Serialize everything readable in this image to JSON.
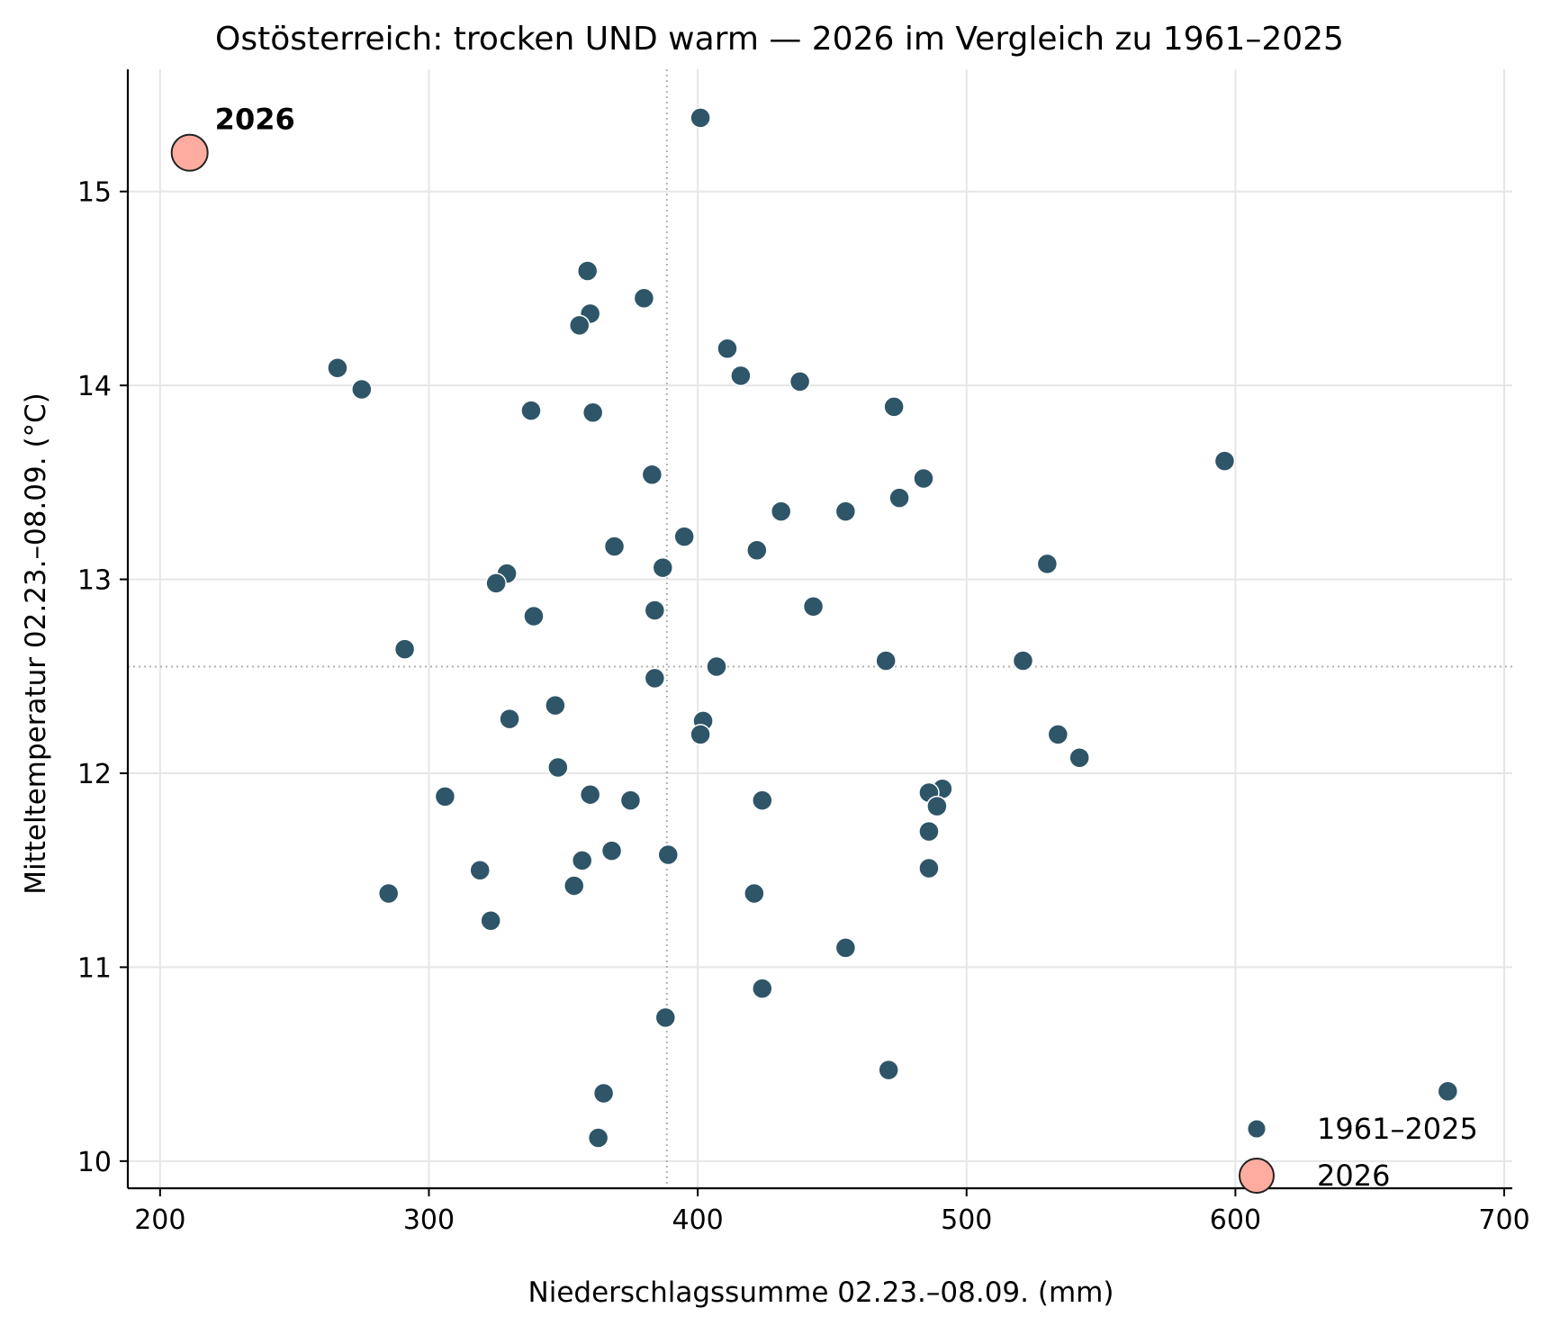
{
  "chart_data": {
    "type": "scatter",
    "title": "Ostösterreich: trocken UND warm — 2026 im Vergleich zu 1961–2025",
    "xlabel": "Niederschlagssumme 02.23.–08.09. (mm)",
    "ylabel": "Mitteltemperatur 02.23.–08.09. (°C)",
    "xlim": [
      188,
      703
    ],
    "ylim": [
      9.86,
      15.63
    ],
    "xticks": [
      "200",
      "300",
      "400",
      "500",
      "600",
      "700"
    ],
    "yticks": [
      "10",
      "11",
      "12",
      "13",
      "14",
      "15"
    ],
    "grid": true,
    "legend_position": "bottom-right",
    "reference_lines": {
      "x_mean": 388.5,
      "y_mean": 12.55
    },
    "series": [
      {
        "name": "1961–2025",
        "color": "#2e5568",
        "points": [
          [
            401,
            15.38
          ],
          [
            359,
            14.59
          ],
          [
            380,
            14.45
          ],
          [
            360,
            14.37
          ],
          [
            356,
            14.31
          ],
          [
            411,
            14.19
          ],
          [
            266,
            14.09
          ],
          [
            416,
            14.05
          ],
          [
            438,
            14.02
          ],
          [
            275,
            13.98
          ],
          [
            473,
            13.89
          ],
          [
            338,
            13.87
          ],
          [
            361,
            13.86
          ],
          [
            596,
            13.61
          ],
          [
            383,
            13.54
          ],
          [
            484,
            13.52
          ],
          [
            475,
            13.42
          ],
          [
            431,
            13.35
          ],
          [
            455,
            13.35
          ],
          [
            395,
            13.22
          ],
          [
            369,
            13.17
          ],
          [
            422,
            13.15
          ],
          [
            530,
            13.08
          ],
          [
            387,
            13.06
          ],
          [
            329,
            13.03
          ],
          [
            325,
            12.98
          ],
          [
            443,
            12.86
          ],
          [
            384,
            12.84
          ],
          [
            339,
            12.81
          ],
          [
            291,
            12.64
          ],
          [
            470,
            12.58
          ],
          [
            521,
            12.58
          ],
          [
            407,
            12.55
          ],
          [
            384,
            12.49
          ],
          [
            347,
            12.35
          ],
          [
            330,
            12.28
          ],
          [
            402,
            12.27
          ],
          [
            401,
            12.2
          ],
          [
            534,
            12.2
          ],
          [
            542,
            12.08
          ],
          [
            348,
            12.03
          ],
          [
            491,
            11.92
          ],
          [
            486,
            11.9
          ],
          [
            360,
            11.89
          ],
          [
            306,
            11.88
          ],
          [
            375,
            11.86
          ],
          [
            424,
            11.86
          ],
          [
            489,
            11.83
          ],
          [
            486,
            11.7
          ],
          [
            368,
            11.6
          ],
          [
            389,
            11.58
          ],
          [
            357,
            11.55
          ],
          [
            486,
            11.51
          ],
          [
            319,
            11.5
          ],
          [
            354,
            11.42
          ],
          [
            285,
            11.38
          ],
          [
            421,
            11.38
          ],
          [
            323,
            11.24
          ],
          [
            455,
            11.1
          ],
          [
            424,
            10.89
          ],
          [
            388,
            10.74
          ],
          [
            471,
            10.47
          ],
          [
            679,
            10.36
          ],
          [
            365,
            10.35
          ],
          [
            363,
            10.12
          ]
        ]
      },
      {
        "name": "2026",
        "color": "#ffaca0",
        "points": [
          [
            211,
            15.2
          ]
        ]
      }
    ],
    "annotations": [
      {
        "text": "2026",
        "x": 211,
        "y": 15.2
      }
    ]
  }
}
